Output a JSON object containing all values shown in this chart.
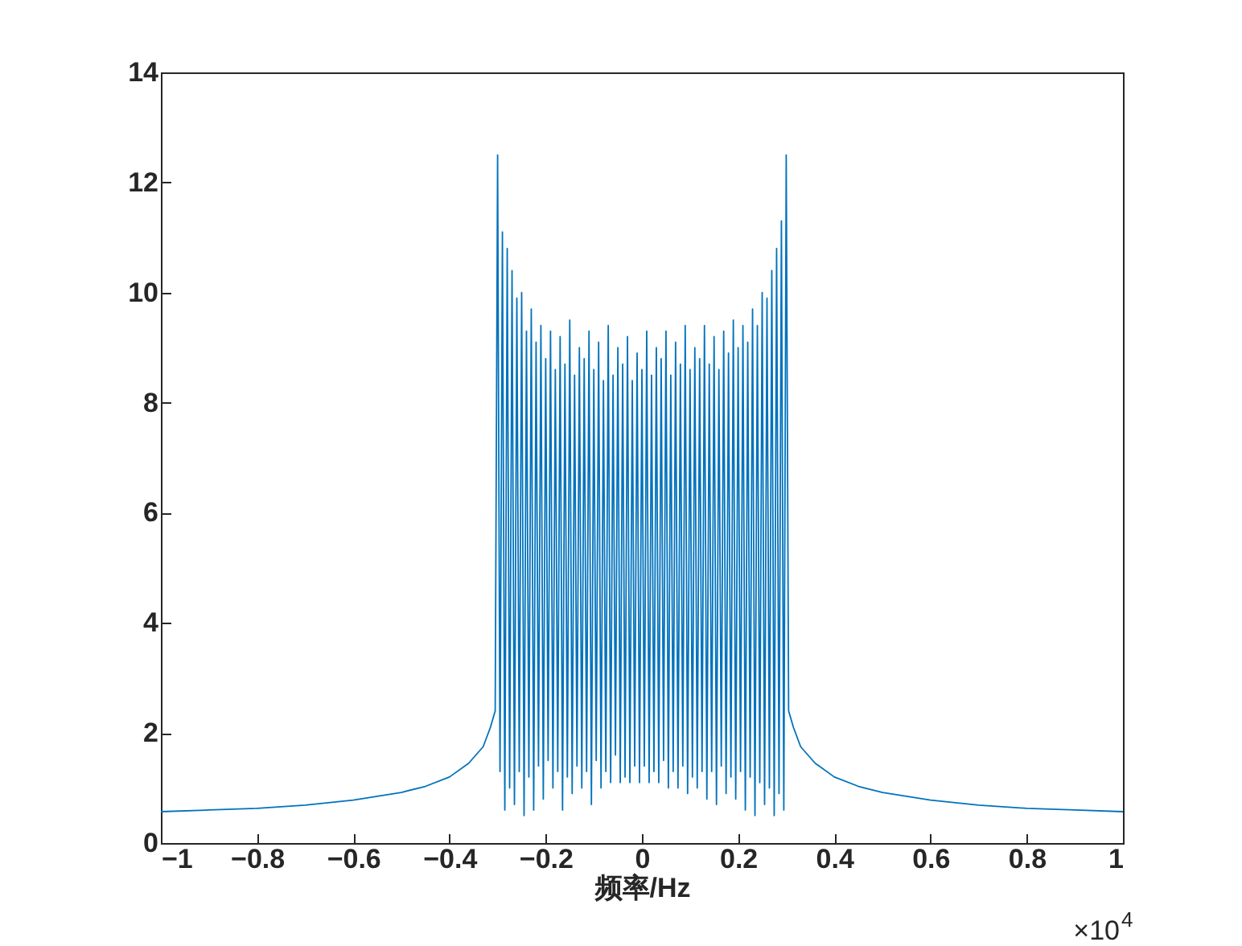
{
  "chart_data": {
    "type": "line",
    "xlabel": "频率/Hz",
    "annotations": [
      "×10$^{4}$"
    ],
    "xlim": [
      -1,
      1
    ],
    "xticks": [
      -1,
      -0.8,
      -0.6,
      -0.4,
      -0.2,
      0,
      0.2,
      0.4,
      0.6,
      0.8,
      1
    ],
    "ylim": [
      0,
      14
    ],
    "yticks": [
      0,
      2,
      4,
      6,
      8,
      10,
      12,
      14
    ],
    "grid": false,
    "series": [
      {
        "color": "#0072bd",
        "x": [
          -1,
          -0.9,
          -0.8,
          -0.7,
          -0.6,
          -0.5,
          -0.45,
          -0.4,
          -0.36,
          -0.33,
          -0.315,
          -0.305,
          -0.3,
          -0.295,
          -0.29,
          -0.285,
          -0.28,
          -0.275,
          -0.27,
          -0.265,
          -0.26,
          -0.255,
          -0.25,
          -0.245,
          -0.24,
          -0.235,
          -0.23,
          -0.225,
          -0.22,
          -0.215,
          -0.21,
          -0.205,
          -0.2,
          -0.195,
          -0.19,
          -0.185,
          -0.18,
          -0.175,
          -0.17,
          -0.165,
          -0.16,
          -0.155,
          -0.15,
          -0.145,
          -0.14,
          -0.135,
          -0.13,
          -0.125,
          -0.12,
          -0.115,
          -0.11,
          -0.105,
          -0.1,
          -0.095,
          -0.09,
          -0.085,
          -0.08,
          -0.075,
          -0.07,
          -0.065,
          -0.06,
          -0.055,
          -0.05,
          -0.045,
          -0.04,
          -0.035,
          -0.03,
          -0.025,
          -0.02,
          -0.015,
          -0.01,
          -0.005,
          0,
          0.005,
          0.01,
          0.015,
          0.02,
          0.025,
          0.03,
          0.035,
          0.04,
          0.045,
          0.05,
          0.055,
          0.06,
          0.065,
          0.07,
          0.075,
          0.08,
          0.085,
          0.09,
          0.095,
          0.1,
          0.105,
          0.11,
          0.115,
          0.12,
          0.125,
          0.13,
          0.135,
          0.14,
          0.145,
          0.15,
          0.155,
          0.16,
          0.165,
          0.17,
          0.175,
          0.18,
          0.185,
          0.19,
          0.195,
          0.2,
          0.205,
          0.21,
          0.215,
          0.22,
          0.225,
          0.23,
          0.235,
          0.24,
          0.245,
          0.25,
          0.255,
          0.26,
          0.265,
          0.27,
          0.275,
          0.28,
          0.285,
          0.29,
          0.295,
          0.3,
          0.305,
          0.315,
          0.33,
          0.36,
          0.4,
          0.45,
          0.5,
          0.6,
          0.7,
          0.8,
          0.9,
          1
        ],
        "values": [
          0.57,
          0.6,
          0.63,
          0.69,
          0.78,
          0.92,
          1.03,
          1.2,
          1.45,
          1.75,
          2.1,
          2.4,
          12.5,
          1.3,
          11.1,
          0.6,
          10.8,
          1.0,
          10.4,
          0.7,
          9.9,
          1.3,
          10.0,
          0.5,
          9.3,
          1.2,
          9.7,
          0.6,
          9.1,
          1.4,
          9.4,
          0.8,
          8.8,
          1.5,
          9.3,
          1.0,
          8.6,
          1.3,
          9.2,
          0.6,
          8.7,
          1.2,
          9.5,
          0.9,
          8.5,
          1.4,
          9.0,
          1.0,
          8.8,
          1.3,
          9.3,
          0.7,
          8.6,
          1.5,
          9.1,
          1.0,
          8.4,
          1.3,
          9.4,
          1.1,
          8.5,
          1.6,
          9.0,
          1.1,
          8.7,
          1.2,
          9.2,
          1.1,
          8.4,
          1.4,
          8.9,
          1.1,
          8.6,
          1.4,
          9.3,
          1.1,
          8.5,
          1.3,
          9.0,
          1.1,
          8.8,
          1.5,
          9.3,
          1.0,
          8.5,
          1.3,
          9.1,
          1.0,
          8.7,
          1.4,
          9.4,
          0.9,
          8.6,
          1.2,
          9.0,
          1.0,
          8.8,
          1.3,
          9.4,
          0.8,
          8.7,
          1.3,
          9.2,
          0.7,
          8.6,
          1.4,
          9.3,
          0.9,
          8.9,
          1.2,
          9.5,
          0.8,
          9.0,
          1.3,
          9.4,
          0.6,
          9.1,
          1.2,
          9.7,
          0.5,
          9.4,
          1.1,
          10.0,
          0.7,
          9.9,
          1.0,
          10.4,
          0.5,
          10.8,
          0.9,
          11.3,
          0.6,
          12.5,
          2.4,
          2.1,
          1.75,
          1.45,
          1.2,
          1.03,
          0.92,
          0.78,
          0.69,
          0.63,
          0.6,
          0.57
        ]
      }
    ]
  }
}
